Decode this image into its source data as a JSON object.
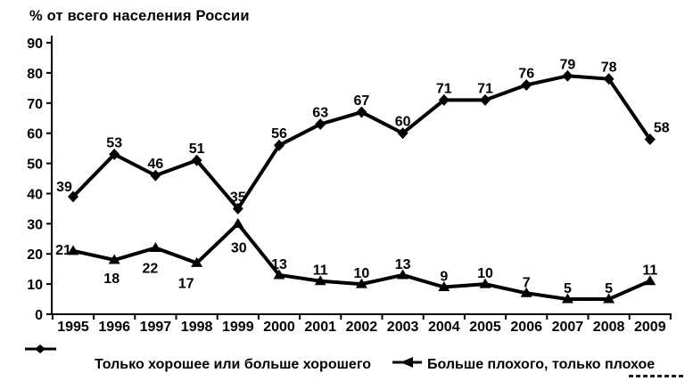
{
  "title": "% от всего населения России",
  "chart_data": {
    "type": "line",
    "x": [
      1995,
      1996,
      1997,
      1998,
      1999,
      2000,
      2001,
      2002,
      2003,
      2004,
      2005,
      2006,
      2007,
      2008,
      2009
    ],
    "series": [
      {
        "name": "Только хорошее или больше хорошего",
        "marker": "diamond",
        "values": [
          39,
          53,
          46,
          51,
          35,
          56,
          63,
          67,
          60,
          71,
          71,
          76,
          79,
          78,
          58
        ]
      },
      {
        "name": "Больше плохого, только плохое",
        "marker": "triangle",
        "values": [
          21,
          18,
          22,
          17,
          30,
          13,
          11,
          10,
          13,
          9,
          10,
          7,
          5,
          5,
          11
        ]
      }
    ],
    "title": "% от всего населения России",
    "xlabel": "",
    "ylabel": "",
    "ylim": [
      0,
      90
    ],
    "yticks": [
      0,
      10,
      20,
      30,
      40,
      50,
      60,
      70,
      80,
      90
    ],
    "grid": false,
    "legend_position": "bottom",
    "line_color": "#000000",
    "background": "#ffffff",
    "data_labels": true
  },
  "legend": {
    "items": [
      {
        "label": "Только хорошее или больше хорошего",
        "marker": "diamond-line"
      },
      {
        "label": "Больше плохого, только плохое",
        "marker": "triangle-line"
      }
    ]
  }
}
